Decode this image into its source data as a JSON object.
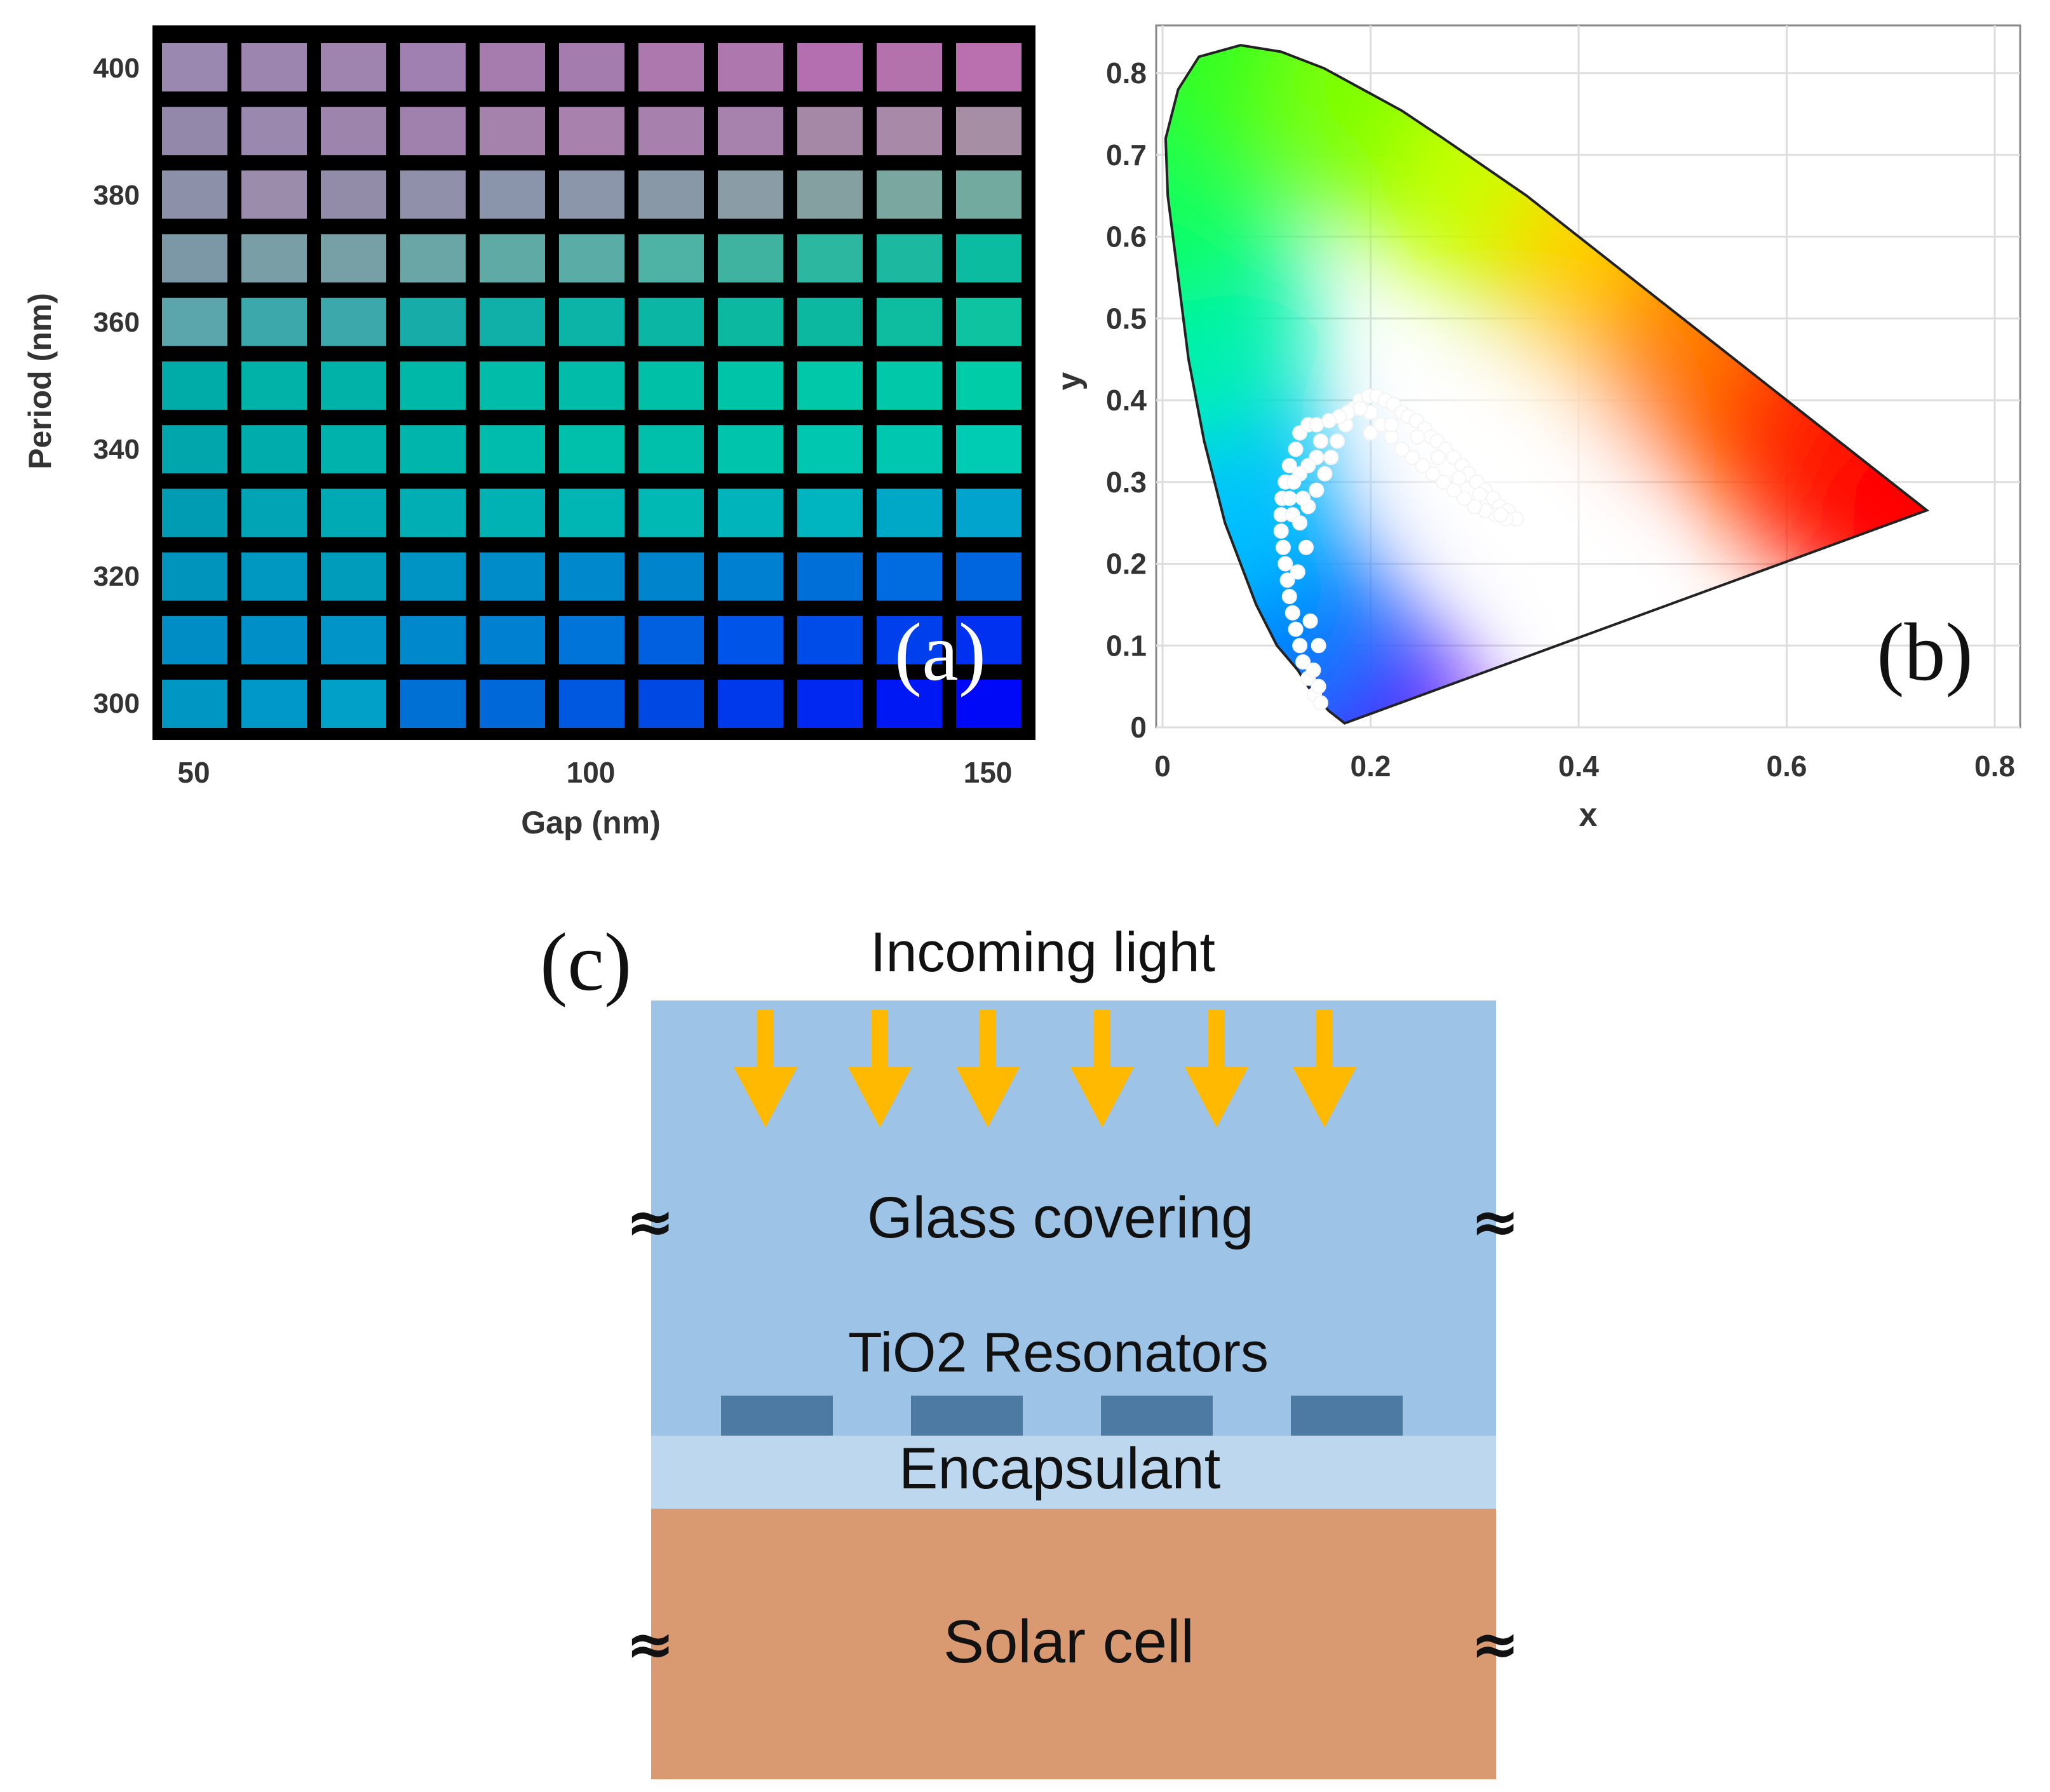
{
  "panel_a": {
    "tag": "(a)",
    "type": "heatmap",
    "xlabel": "Gap (nm)",
    "ylabel": "Period (nm)",
    "x_tick_labels": [
      "50",
      "100",
      "150"
    ],
    "y_tick_labels": [
      "400",
      "380",
      "360",
      "340",
      "320",
      "300"
    ],
    "gap_values_nm": [
      50,
      60,
      70,
      80,
      90,
      100,
      110,
      120,
      130,
      140,
      150
    ],
    "period_values_nm": [
      400,
      390,
      380,
      370,
      360,
      350,
      340,
      330,
      320,
      310,
      300
    ],
    "cell_colors": [
      [
        "#9a88b0",
        "#9c86b0",
        "#a084b0",
        "#a080b0",
        "#a67cae",
        "#a47cae",
        "#ac78ae",
        "#ae78ae",
        "#b46fb0",
        "#b472ac",
        "#ba70ae"
      ],
      [
        "#9488aa",
        "#9a88ae",
        "#9c84ac",
        "#a080ac",
        "#a482ac",
        "#a882ac",
        "#a880ae",
        "#a682ac",
        "#a488a6",
        "#a88aa8",
        "#a68ea4"
      ],
      [
        "#8c90a8",
        "#9c8cac",
        "#928ca8",
        "#9090aa",
        "#8a94aa",
        "#8c96aa",
        "#8898a6",
        "#8a9ca6",
        "#84a0a0",
        "#7aa8a0",
        "#72aaa0"
      ],
      [
        "#7c98a6",
        "#7a9ea6",
        "#76a0a6",
        "#6aa6a6",
        "#60aaa6",
        "#5aaca6",
        "#4eb2a4",
        "#40b2a0",
        "#2cb8a0",
        "#1cb8a0",
        "#0cbca0"
      ],
      [
        "#5aa6ac",
        "#3ca8ac",
        "#3ca8ac",
        "#18aca8",
        "#10b0a8",
        "#0cb4a8",
        "#0cb6a4",
        "#0cb8a0",
        "#0cb8a0",
        "#0ebca0",
        "#0ec4a0"
      ],
      [
        "#00aca8",
        "#00b2a8",
        "#00b2a8",
        "#00b8a8",
        "#00bca8",
        "#00bca8",
        "#00c0a8",
        "#00c4a8",
        "#00c8a8",
        "#00c8a8",
        "#00cca8"
      ],
      [
        "#00a6ac",
        "#00acac",
        "#00b2ac",
        "#00b6ac",
        "#00bcac",
        "#00c0ac",
        "#00c0ac",
        "#00c4ac",
        "#00c8b0",
        "#00c8b0",
        "#00ccb4"
      ],
      [
        "#009cb4",
        "#00a4b4",
        "#00aab4",
        "#00aeb4",
        "#00b2b4",
        "#00b6b4",
        "#00b8b4",
        "#00b4bc",
        "#00b4c0",
        "#00a8c8",
        "#00a4cc"
      ],
      [
        "#0094bc",
        "#0098c0",
        "#009cbc",
        "#0094c4",
        "#008cc8",
        "#0088cc",
        "#0084cc",
        "#0080d0",
        "#0070d8",
        "#006ce0",
        "#0066e0"
      ],
      [
        "#008cc4",
        "#0090c8",
        "#0094c8",
        "#0088cc",
        "#0080d0",
        "#0074d8",
        "#0060e0",
        "#0054e8",
        "#004ce8",
        "#0040ec",
        "#0030f0"
      ],
      [
        "#0096c4",
        "#0098c8",
        "#00a0c8",
        "#0070d4",
        "#0068d8",
        "#0058e0",
        "#0048e4",
        "#0038ec",
        "#0028f0",
        "#0018f4",
        "#0008f8"
      ]
    ]
  },
  "panel_b": {
    "tag": "(b)",
    "type": "scatter",
    "xlabel": "x",
    "ylabel": "y",
    "xlim": [
      0,
      0.85
    ],
    "ylim": [
      0,
      0.85
    ],
    "x_tick_values": [
      0,
      0.2,
      0.4,
      0.6,
      0.8
    ],
    "x_tick_labels": [
      "0",
      "0.2",
      "0.4",
      "0.6",
      "0.8"
    ],
    "y_tick_values": [
      0,
      0.1,
      0.2,
      0.3,
      0.4,
      0.5,
      0.6,
      0.7,
      0.8
    ],
    "y_tick_labels": [
      "0",
      "0.1",
      "0.2",
      "0.3",
      "0.4",
      "0.5",
      "0.6",
      "0.7",
      "0.8"
    ],
    "gamut_boundary": [
      [
        0.175,
        0.005
      ],
      [
        0.17,
        0.01
      ],
      [
        0.16,
        0.02
      ],
      [
        0.145,
        0.04
      ],
      [
        0.13,
        0.07
      ],
      [
        0.11,
        0.1
      ],
      [
        0.09,
        0.15
      ],
      [
        0.06,
        0.25
      ],
      [
        0.04,
        0.35
      ],
      [
        0.025,
        0.45
      ],
      [
        0.015,
        0.55
      ],
      [
        0.005,
        0.65
      ],
      [
        0.003,
        0.72
      ],
      [
        0.015,
        0.78
      ],
      [
        0.035,
        0.82
      ],
      [
        0.075,
        0.834
      ],
      [
        0.114,
        0.826
      ],
      [
        0.155,
        0.806
      ],
      [
        0.23,
        0.754
      ],
      [
        0.27,
        0.72
      ],
      [
        0.35,
        0.65
      ],
      [
        0.45,
        0.55
      ],
      [
        0.55,
        0.45
      ],
      [
        0.65,
        0.35
      ],
      [
        0.7347,
        0.2653
      ]
    ],
    "locus_sample_points": [
      {
        "x": 0.175,
        "y": 0.005,
        "color": "#7a00ff"
      },
      {
        "x": 0.14,
        "y": 0.05,
        "color": "#3a2aff"
      },
      {
        "x": 0.09,
        "y": 0.15,
        "color": "#007cff"
      },
      {
        "x": 0.045,
        "y": 0.3,
        "color": "#00c0ff"
      },
      {
        "x": 0.02,
        "y": 0.5,
        "color": "#00f0b0"
      },
      {
        "x": 0.005,
        "y": 0.68,
        "color": "#10ff60"
      },
      {
        "x": 0.075,
        "y": 0.834,
        "color": "#30ff20"
      },
      {
        "x": 0.23,
        "y": 0.754,
        "color": "#80ff00"
      },
      {
        "x": 0.35,
        "y": 0.65,
        "color": "#c8ff00"
      },
      {
        "x": 0.45,
        "y": 0.55,
        "color": "#ffd000"
      },
      {
        "x": 0.55,
        "y": 0.45,
        "color": "#ff8000"
      },
      {
        "x": 0.65,
        "y": 0.35,
        "color": "#ff2a00"
      },
      {
        "x": 0.7347,
        "y": 0.2653,
        "color": "#ff0000"
      }
    ],
    "white_point_color": "#ffffff",
    "samples": [
      [
        0.146,
        0.04
      ],
      [
        0.14,
        0.06
      ],
      [
        0.135,
        0.08
      ],
      [
        0.132,
        0.1
      ],
      [
        0.128,
        0.12
      ],
      [
        0.125,
        0.14
      ],
      [
        0.122,
        0.16
      ],
      [
        0.12,
        0.18
      ],
      [
        0.118,
        0.2
      ],
      [
        0.116,
        0.22
      ],
      [
        0.114,
        0.24
      ],
      [
        0.114,
        0.26
      ],
      [
        0.115,
        0.28
      ],
      [
        0.118,
        0.3
      ],
      [
        0.122,
        0.32
      ],
      [
        0.128,
        0.34
      ],
      [
        0.132,
        0.36
      ],
      [
        0.14,
        0.37
      ],
      [
        0.148,
        0.37
      ],
      [
        0.152,
        0.35
      ],
      [
        0.148,
        0.33
      ],
      [
        0.14,
        0.32
      ],
      [
        0.132,
        0.31
      ],
      [
        0.126,
        0.3
      ],
      [
        0.122,
        0.28
      ],
      [
        0.125,
        0.26
      ],
      [
        0.132,
        0.25
      ],
      [
        0.14,
        0.27
      ],
      [
        0.148,
        0.29
      ],
      [
        0.156,
        0.31
      ],
      [
        0.162,
        0.33
      ],
      [
        0.168,
        0.35
      ],
      [
        0.176,
        0.37
      ],
      [
        0.184,
        0.39
      ],
      [
        0.19,
        0.4
      ],
      [
        0.198,
        0.405
      ],
      [
        0.206,
        0.405
      ],
      [
        0.214,
        0.4
      ],
      [
        0.222,
        0.395
      ],
      [
        0.23,
        0.385
      ],
      [
        0.236,
        0.38
      ],
      [
        0.244,
        0.375
      ],
      [
        0.252,
        0.365
      ],
      [
        0.258,
        0.355
      ],
      [
        0.264,
        0.35
      ],
      [
        0.272,
        0.34
      ],
      [
        0.28,
        0.33
      ],
      [
        0.288,
        0.32
      ],
      [
        0.294,
        0.31
      ],
      [
        0.302,
        0.3
      ],
      [
        0.31,
        0.29
      ],
      [
        0.318,
        0.28
      ],
      [
        0.324,
        0.27
      ],
      [
        0.332,
        0.265
      ],
      [
        0.34,
        0.255
      ],
      [
        0.33,
        0.255
      ],
      [
        0.32,
        0.26
      ],
      [
        0.31,
        0.265
      ],
      [
        0.3,
        0.27
      ],
      [
        0.29,
        0.28
      ],
      [
        0.28,
        0.29
      ],
      [
        0.27,
        0.3
      ],
      [
        0.26,
        0.31
      ],
      [
        0.25,
        0.32
      ],
      [
        0.24,
        0.33
      ],
      [
        0.23,
        0.34
      ],
      [
        0.22,
        0.355
      ],
      [
        0.21,
        0.37
      ],
      [
        0.2,
        0.385
      ],
      [
        0.19,
        0.39
      ],
      [
        0.178,
        0.385
      ],
      [
        0.17,
        0.38
      ],
      [
        0.16,
        0.375
      ],
      [
        0.2,
        0.36
      ],
      [
        0.22,
        0.37
      ],
      [
        0.245,
        0.355
      ],
      [
        0.265,
        0.33
      ],
      [
        0.285,
        0.305
      ],
      [
        0.305,
        0.285
      ],
      [
        0.325,
        0.26
      ],
      [
        0.135,
        0.28
      ],
      [
        0.138,
        0.22
      ],
      [
        0.13,
        0.19
      ],
      [
        0.142,
        0.13
      ],
      [
        0.15,
        0.1
      ],
      [
        0.145,
        0.07
      ],
      [
        0.15,
        0.05
      ],
      [
        0.152,
        0.03
      ]
    ]
  },
  "panel_c": {
    "tag": "(c)",
    "incoming_light": "Incoming light",
    "glass": "Glass covering",
    "resonators": "TiO2 Resonators",
    "encapsulant": "Encapsulant",
    "solar_cell": "Solar cell",
    "break_symbol": "≈",
    "colors": {
      "glass": "#9dc3e6",
      "resonator": "#4d7aa3",
      "encapsulant": "#bdd7ee",
      "solar_cell": "#d99a72",
      "arrow": "#ffb900"
    }
  }
}
